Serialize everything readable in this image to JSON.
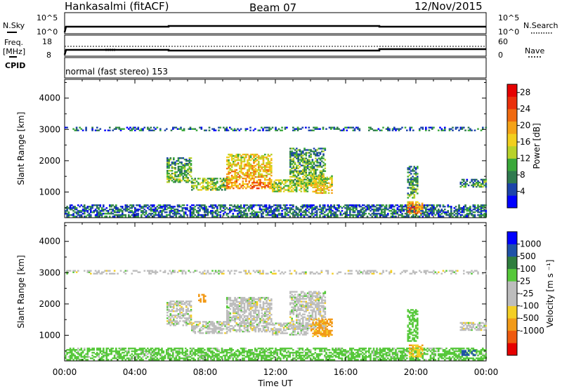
{
  "header": {
    "station": "Hankasalmi (fitACF)",
    "beam": "Beam 07",
    "date": "12/Nov/2015"
  },
  "status_panel": {
    "nsky_label": "N.Sky",
    "nsky_ticks": [
      "10^5",
      "10^0"
    ],
    "nsearch_label": "N.Search",
    "nsearch_ticks": [
      "10^5",
      "10^0"
    ],
    "freq_label_1": "Freq.",
    "freq_label_2": "[MHz]",
    "freq_ticks": [
      "18",
      "8"
    ],
    "cpid_label": "CPID",
    "nave_label": "Nave",
    "nave_ticks": [
      "60",
      "0"
    ],
    "cpid_text": "normal (fast stereo) 153"
  },
  "x_axis": {
    "ticks": [
      "00:00",
      "04:00",
      "08:00",
      "12:00",
      "16:00",
      "20:00",
      "00:00"
    ],
    "label": "Time UT"
  },
  "colors": {
    "power_scale": [
      "#0000ff",
      "#1c44aa",
      "#2f7a4f",
      "#3aa83a",
      "#b8d22a",
      "#f2cf1e",
      "#f5a318",
      "#f06a10",
      "#ea2f0b",
      "#e60000"
    ],
    "velocity_scale": [
      "#0000ff",
      "#1f52a8",
      "#2f7e3e",
      "#56c83a",
      "#bdbdbd",
      "#bdbdbd",
      "#f4cf25",
      "#f29a18",
      "#ef5a0e",
      "#e60000"
    ],
    "ground_scatter": "#aaaaaa"
  },
  "chart_data": [
    {
      "type": "heatmap",
      "title": "",
      "xlabel": "",
      "ylabel": "Slant Range [km]",
      "xlim": [
        0,
        24
      ],
      "ylim": [
        180,
        4600
      ],
      "yticks": [
        "1000",
        "2000",
        "3000",
        "4000"
      ],
      "colorbar": {
        "label": "Power [dB]",
        "ticks": [
          "4",
          "8",
          "12",
          "16",
          "20",
          "24",
          "28"
        ],
        "range": [
          0,
          30
        ]
      },
      "patches": [
        {
          "t0": 0.0,
          "t1": 24.0,
          "r0": 200,
          "r1": 600,
          "v": 6
        },
        {
          "t0": 5.8,
          "t1": 7.2,
          "r0": 1300,
          "r1": 2100,
          "v": 10
        },
        {
          "t0": 7.2,
          "t1": 9.2,
          "r0": 1050,
          "r1": 1450,
          "v": 12
        },
        {
          "t0": 9.2,
          "t1": 11.8,
          "r0": 1100,
          "r1": 2200,
          "v": 18
        },
        {
          "t0": 11.8,
          "t1": 13.8,
          "r0": 1000,
          "r1": 1400,
          "v": 14
        },
        {
          "t0": 12.8,
          "t1": 14.8,
          "r0": 1200,
          "r1": 2400,
          "v": 10
        },
        {
          "t0": 14.0,
          "t1": 15.2,
          "r0": 950,
          "r1": 1500,
          "v": 16
        },
        {
          "t0": 19.5,
          "t1": 20.1,
          "r0": 800,
          "r1": 1800,
          "v": 9
        },
        {
          "t0": 19.5,
          "t1": 20.4,
          "r0": 300,
          "r1": 700,
          "v": 20
        },
        {
          "t0": 22.5,
          "t1": 24.0,
          "r0": 1150,
          "r1": 1400,
          "v": 8
        },
        {
          "t0": 0.0,
          "t1": 24.0,
          "r0": 2950,
          "r1": 3050,
          "v": 6
        }
      ]
    },
    {
      "type": "heatmap",
      "title": "",
      "xlabel": "Time UT",
      "ylabel": "Slant Range [km]",
      "xlim": [
        0,
        24
      ],
      "ylim": [
        180,
        4600
      ],
      "yticks": [
        "1000",
        "2000",
        "3000",
        "4000"
      ],
      "colorbar": {
        "label": "Velocity [m s^-1]",
        "ticks": [
          "1000",
          "500",
          "100",
          "25",
          "-25",
          "-100",
          "-500",
          "-1000"
        ]
      },
      "patches": [
        {
          "t0": 0.0,
          "t1": 24.0,
          "r0": 200,
          "r1": 600,
          "v": 50
        },
        {
          "t0": 5.8,
          "t1": 7.2,
          "r0": 1300,
          "r1": 2100,
          "v": 0
        },
        {
          "t0": 7.2,
          "t1": 9.2,
          "r0": 1050,
          "r1": 1450,
          "v": 0
        },
        {
          "t0": 9.2,
          "t1": 11.8,
          "r0": 1100,
          "r1": 2200,
          "v": 0
        },
        {
          "t0": 11.8,
          "t1": 13.8,
          "r0": 1000,
          "r1": 1400,
          "v": 0
        },
        {
          "t0": 12.8,
          "t1": 14.8,
          "r0": 1200,
          "r1": 2400,
          "v": 0
        },
        {
          "t0": 14.0,
          "t1": 15.2,
          "r0": 950,
          "r1": 1500,
          "v": -120
        },
        {
          "t0": 7.6,
          "t1": 8.0,
          "r0": 2050,
          "r1": 2300,
          "v": -300
        },
        {
          "t0": 19.5,
          "t1": 20.1,
          "r0": 800,
          "r1": 1800,
          "v": 60
        },
        {
          "t0": 19.6,
          "t1": 20.4,
          "r0": 300,
          "r1": 700,
          "v": -80
        },
        {
          "t0": 22.5,
          "t1": 24.0,
          "r0": 1150,
          "r1": 1400,
          "v": 0
        },
        {
          "t0": 22.6,
          "t1": 23.4,
          "r0": 350,
          "r1": 500,
          "v": 150
        },
        {
          "t0": 0.0,
          "t1": 24.0,
          "r0": 2950,
          "r1": 3050,
          "v": 0
        }
      ]
    }
  ]
}
